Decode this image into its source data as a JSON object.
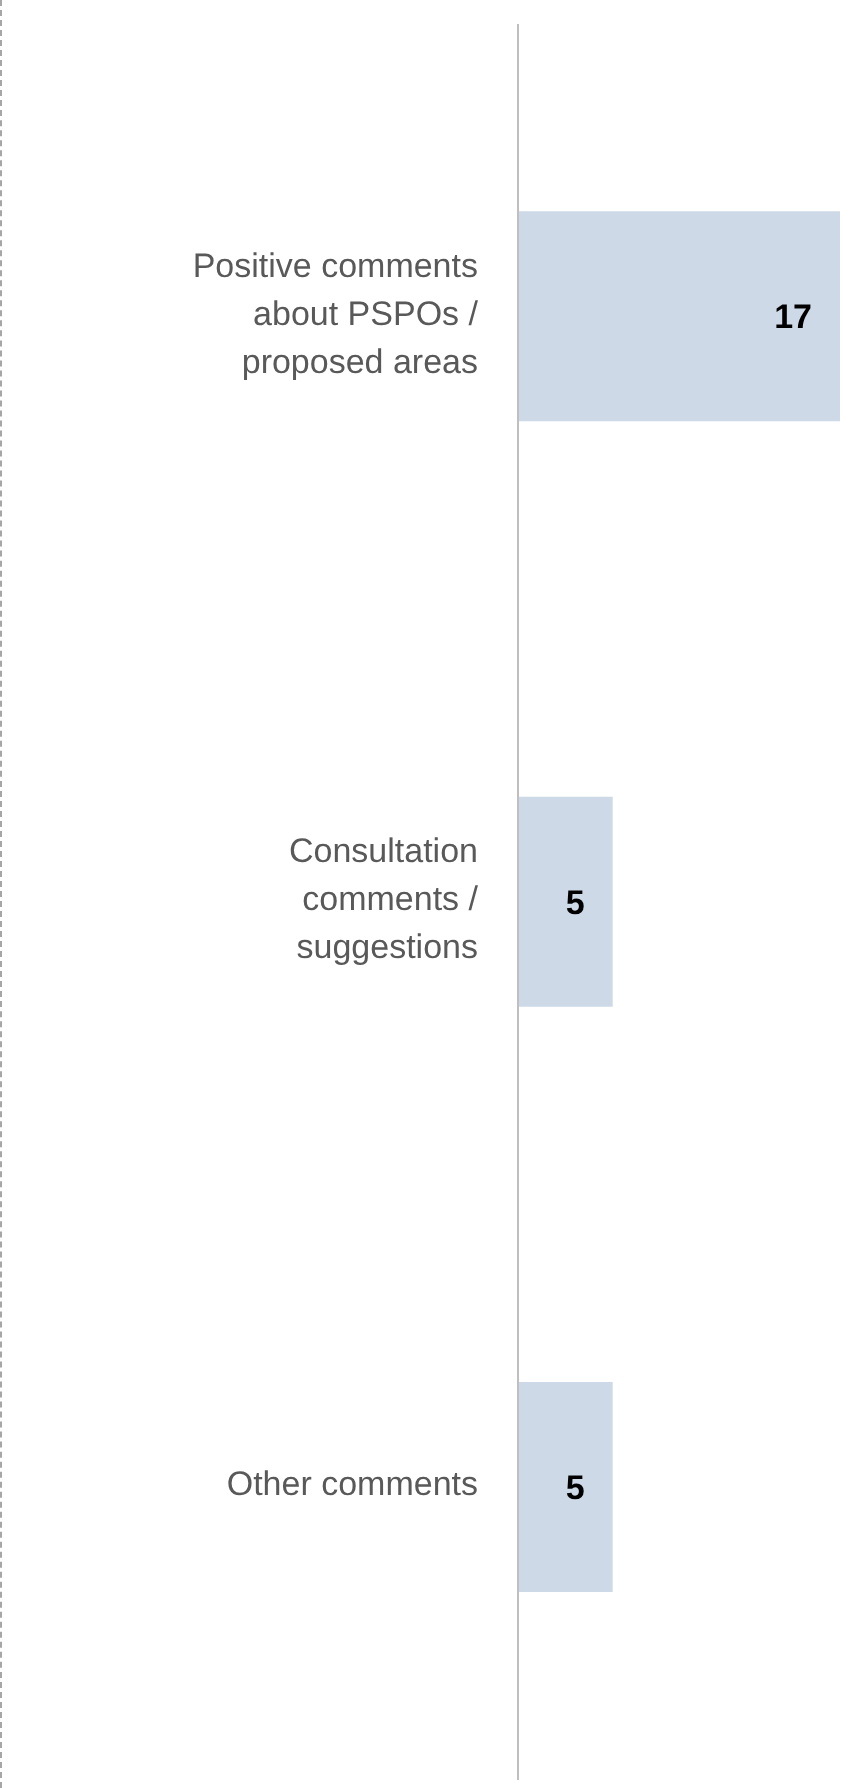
{
  "chart_data": {
    "type": "bar",
    "orientation": "horizontal",
    "categories": [
      "Positive comments about PSPOs / proposed areas",
      "Consultation comments / suggestions",
      "Other comments"
    ],
    "values": [
      17,
      5,
      5
    ],
    "color": "#cdd9e7",
    "data_labels": true
  }
}
